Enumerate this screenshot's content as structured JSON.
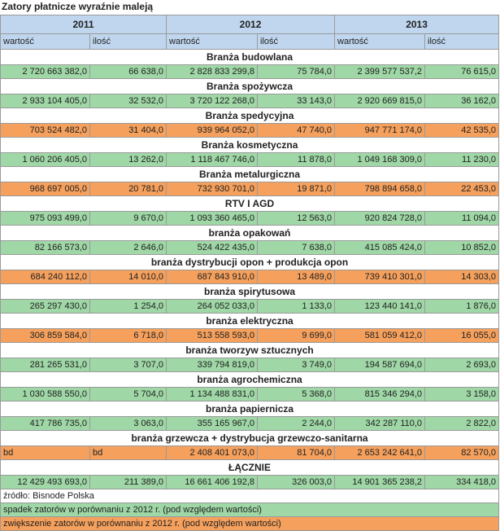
{
  "title": "Zatory płatnicze wyraźnie maleją",
  "years": [
    "2011",
    "2012",
    "2013"
  ],
  "subheaders": [
    "wartość",
    "ilość",
    "wartość",
    "ilość",
    "wartość",
    "ilość"
  ],
  "colors": {
    "header": "#bfd6ee",
    "green": "#9fd7a6",
    "orange": "#f5a05c"
  },
  "rows": [
    {
      "category": "Branża budowlana",
      "color": "green",
      "values": [
        "2 720 663 382,0",
        "66 638,0",
        "2 828 833 299,8",
        "75 784,0",
        "2 399 577 537,2",
        "76 615,0"
      ]
    },
    {
      "category": "Branża spożywcza",
      "color": "green",
      "values": [
        "2 933 104 405,0",
        "32 532,0",
        "3 720 122 268,0",
        "33 143,0",
        "2 920 669 815,0",
        "36 162,0"
      ]
    },
    {
      "category": "Branża spedycyjna",
      "color": "orange",
      "values": [
        "703 524 482,0",
        "31 404,0",
        "939 964 052,0",
        "47 740,0",
        "947 771 174,0",
        "42 535,0"
      ]
    },
    {
      "category": "Branża kosmetyczna",
      "color": "green",
      "values": [
        "1 060 206 405,0",
        "13 262,0",
        "1 118 467 746,0",
        "11 878,0",
        "1 049 168 309,0",
        "11 230,0"
      ]
    },
    {
      "category": "Branża metalurgiczna",
      "color": "orange",
      "values": [
        "968 697 005,0",
        "20 781,0",
        "732 930 701,0",
        "19 871,0",
        "798 894 658,0",
        "22 453,0"
      ]
    },
    {
      "category": "RTV I AGD",
      "color": "green",
      "values": [
        "975 093 499,0",
        "9 670,0",
        "1 093 360 465,0",
        "12 563,0",
        "920 824 728,0",
        "11 094,0"
      ]
    },
    {
      "category": "branża opakowań",
      "color": "green",
      "values": [
        "82 166 573,0",
        "2 646,0",
        "524 422 435,0",
        "7 638,0",
        "415 085 424,0",
        "10 852,0"
      ]
    },
    {
      "category": "branża dystrybucji opon + produkcja opon",
      "color": "orange",
      "values": [
        "684 240 112,0",
        "14 010,0",
        "687 843 910,0",
        "13 489,0",
        "739 410 301,0",
        "14 303,0"
      ]
    },
    {
      "category": "branża spirytusowa",
      "color": "green",
      "values": [
        "265 297 430,0",
        "1 254,0",
        "264 052 033,0",
        "1 133,0",
        "123 440 141,0",
        "1 876,0"
      ]
    },
    {
      "category": "branża elektryczna",
      "color": "orange",
      "values": [
        "306 859 584,0",
        "6 718,0",
        "513 558 593,0",
        "9 699,0",
        "581 059 412,0",
        "16 055,0"
      ]
    },
    {
      "category": "branża tworzyw sztucznych",
      "color": "green",
      "values": [
        "281 265 531,0",
        "3 707,0",
        "339 794 819,0",
        "3 749,0",
        "194 587 694,0",
        "2 693,0"
      ]
    },
    {
      "category": "branża agrochemiczna",
      "color": "green",
      "values": [
        "1 030 588 550,0",
        "5 704,0",
        "1 134 488 831,0",
        "5 368,0",
        "815 346 294,0",
        "3 158,0"
      ]
    },
    {
      "category": "branża papiernicza",
      "color": "green",
      "values": [
        "417 786 735,0",
        "3 063,0",
        "355 165 967,0",
        "2 244,0",
        "342 287 110,0",
        "2 822,0"
      ]
    },
    {
      "category": "branża grzewcza + dystrybucja grzewczo-sanitarna",
      "color": "orange",
      "values": [
        "bd",
        "bd",
        "2 408 401 073,0",
        "81 704,0",
        "2 653 242 641,0",
        "82 570,0"
      ]
    },
    {
      "category": "ŁĄCZNIE",
      "color": "green",
      "values": [
        "12 429 493 693,0",
        "211 389,0",
        "16 661 406 192,8",
        "326 003,0",
        "14 901 365 238,2",
        "334 418,0"
      ]
    }
  ],
  "source": "źródło: Bisnode Polska",
  "legend": [
    {
      "text": "spadek zatorów w porównaniu z 2012 r. (pod względem wartości)",
      "color": "green"
    },
    {
      "text": "zwiększenie zatorów w porównaniu z 2012 r. (pod względem wartości)",
      "color": "orange"
    }
  ]
}
